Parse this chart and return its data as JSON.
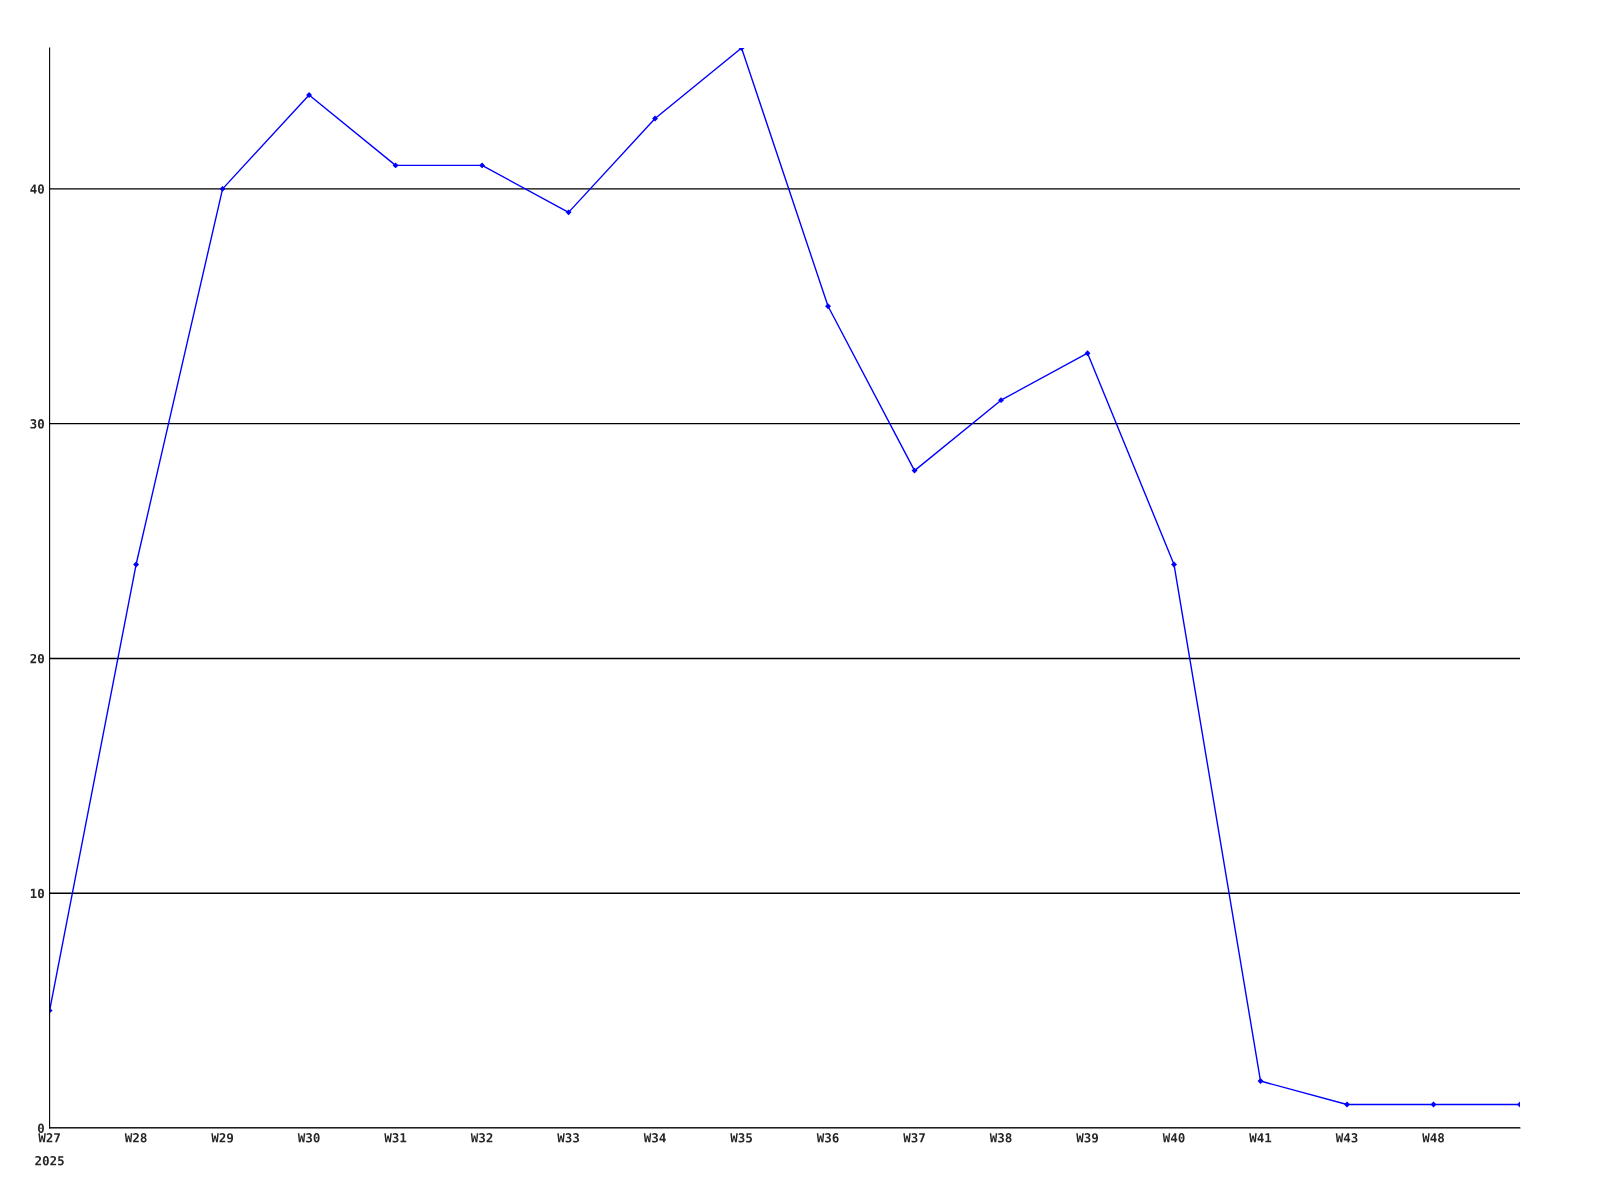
{
  "chart_data": {
    "type": "line",
    "categories": [
      "W27",
      "W28",
      "W29",
      "W30",
      "W31",
      "W32",
      "W33",
      "W34",
      "W35",
      "W36",
      "W37",
      "W38",
      "W39",
      "W40",
      "W41",
      "W43",
      "W48",
      null
    ],
    "series": [
      {
        "color": "#0000ff",
        "values": [
          5,
          24,
          40,
          44,
          41,
          41,
          39,
          43,
          46,
          35,
          28,
          31,
          33,
          24,
          2,
          1,
          1,
          1
        ]
      }
    ],
    "ylim": [
      0,
      46
    ],
    "yticks": [
      0,
      10,
      20,
      30,
      40
    ],
    "grid": "y",
    "marker": "diamond",
    "line_style": "solid",
    "legend": false,
    "annotations": [
      "2025"
    ]
  }
}
